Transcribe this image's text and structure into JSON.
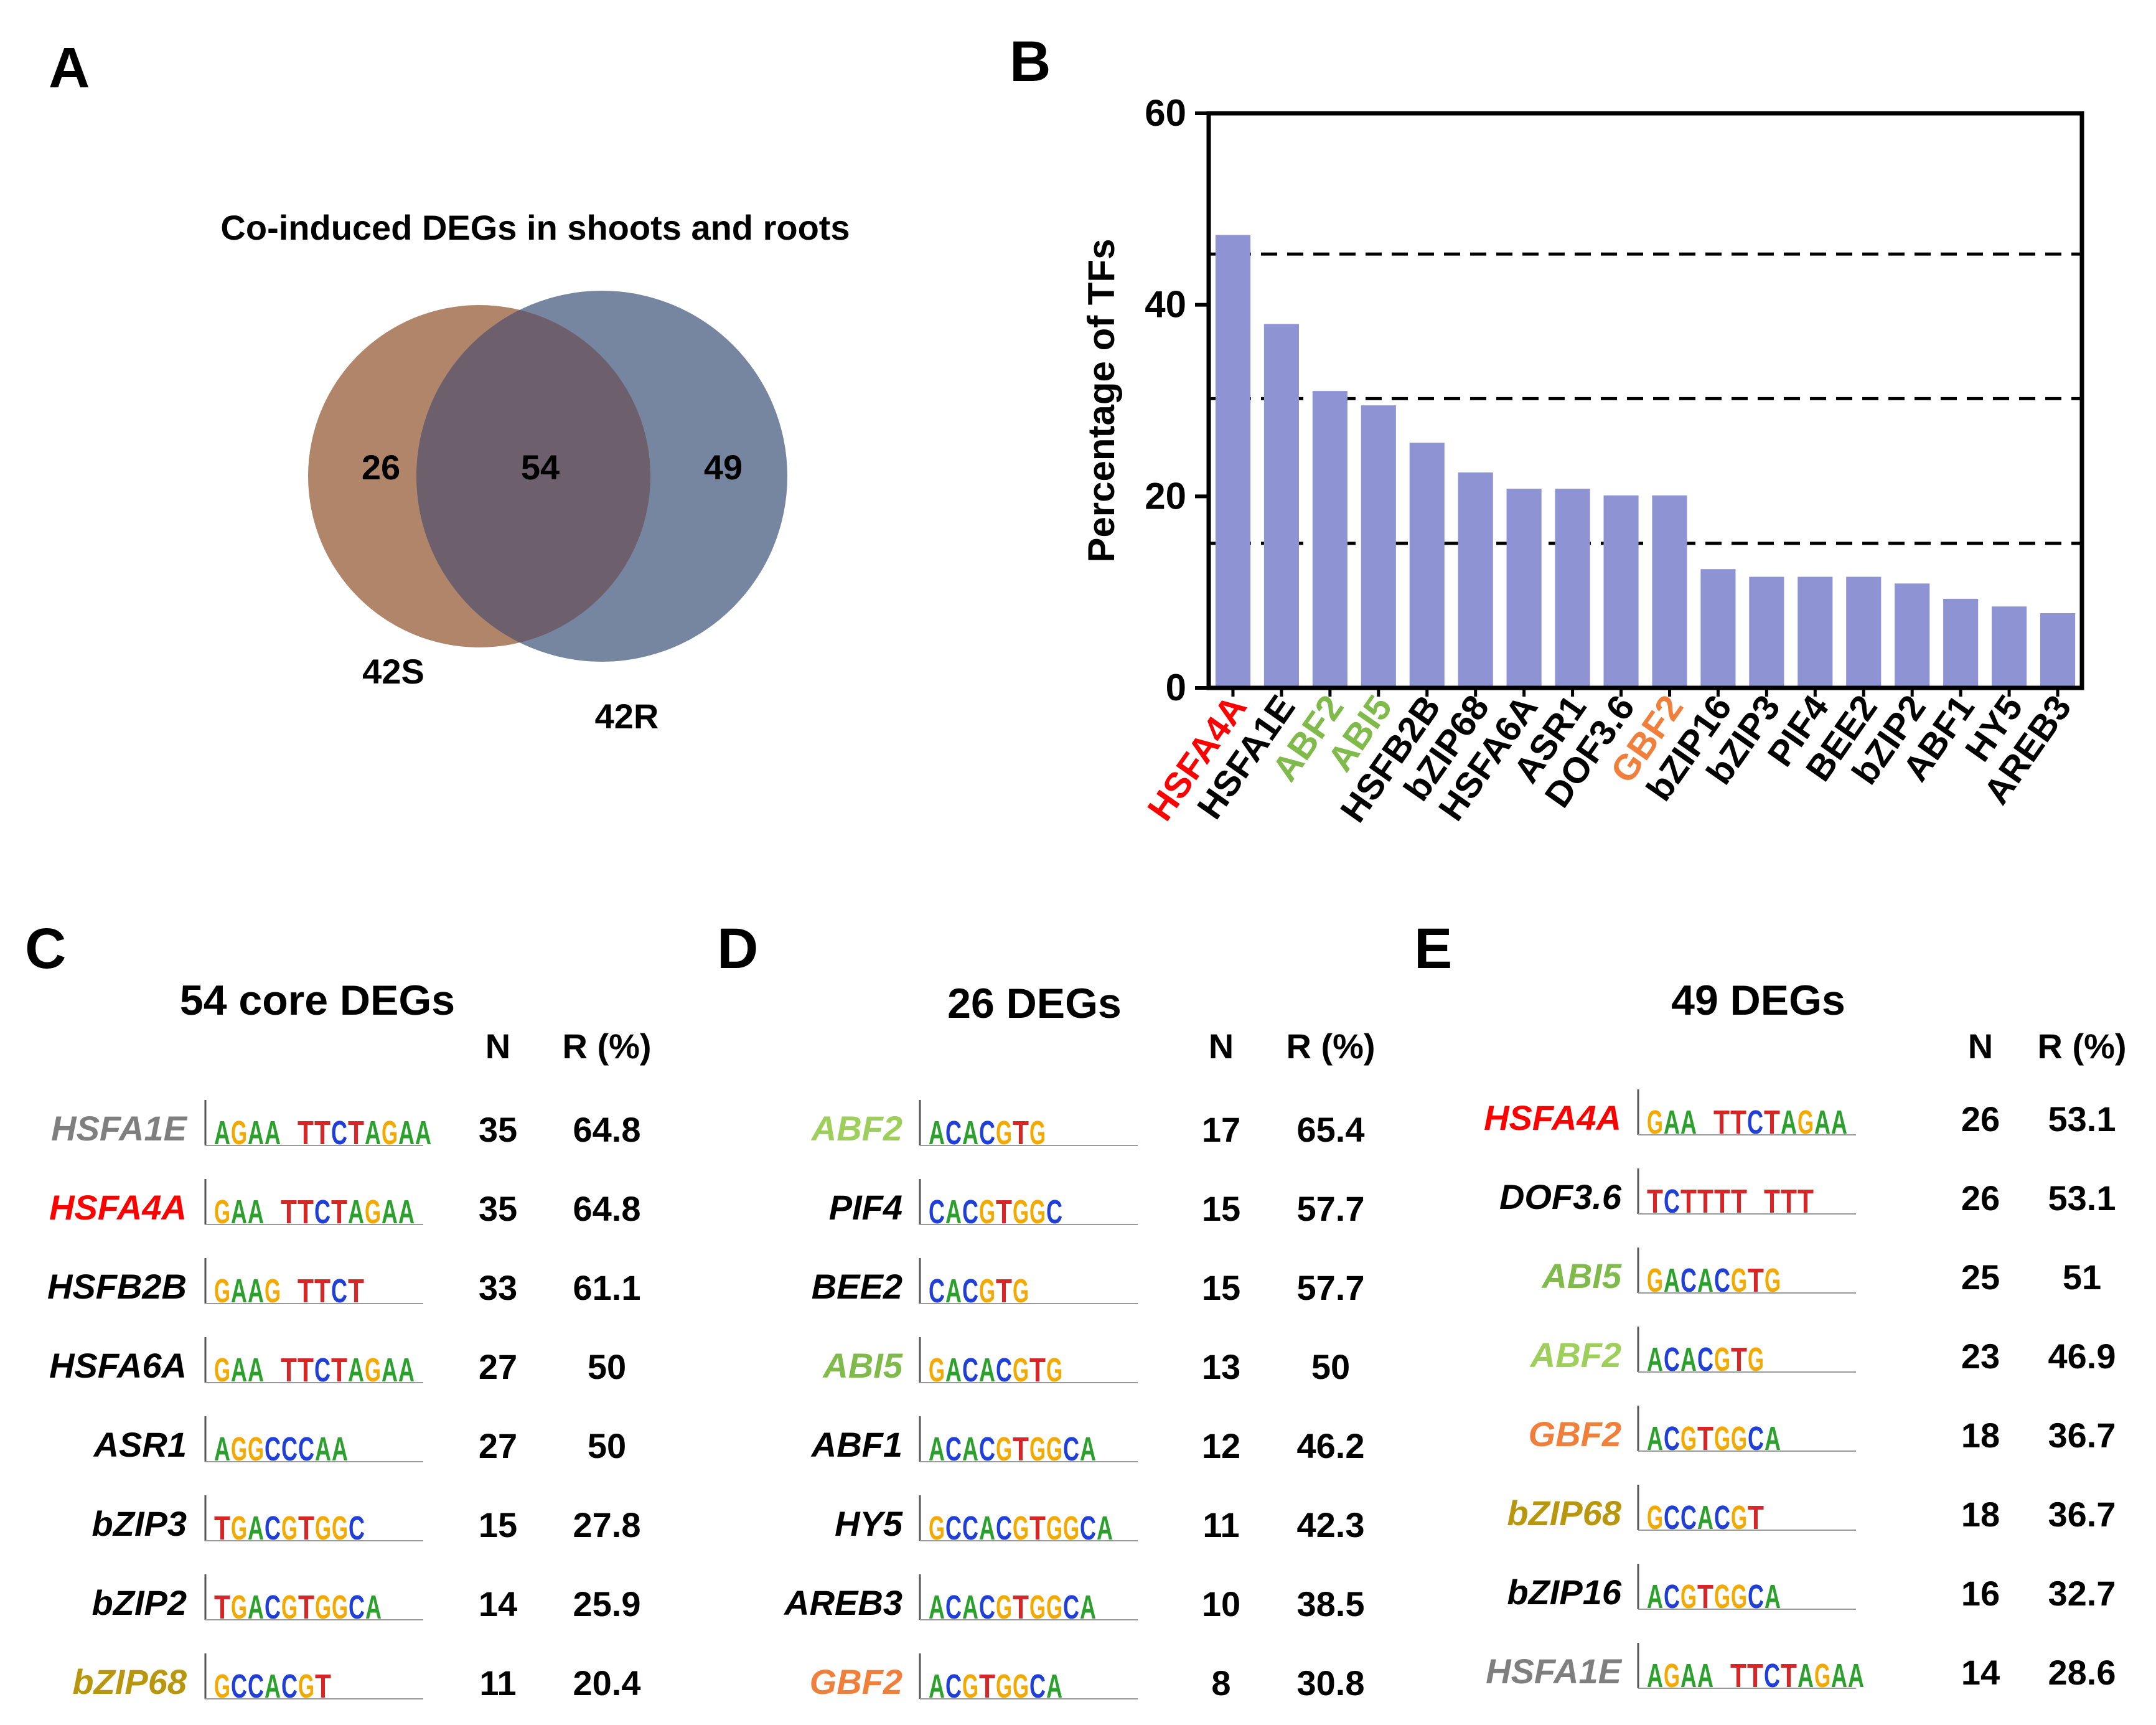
{
  "panels": {
    "a": "A",
    "b": "B",
    "c": "C",
    "d": "D",
    "e": "E"
  },
  "venn": {
    "title": "Co-induced DEGs in shoots and roots",
    "left_label": "42S",
    "right_label": "42R",
    "left_only": "26",
    "overlap": "54",
    "right_only": "49",
    "left_color": "#b08569",
    "right_color": "#6f809b",
    "overlap_color": "#6d5f6c"
  },
  "chart_data": {
    "type": "bar",
    "title": "",
    "xlabel": "",
    "ylabel": "Percentage of TFs",
    "ylim": [
      0,
      60
    ],
    "yticks": [
      "0",
      "20",
      "40",
      "60"
    ],
    "ytick_values": [
      0,
      20,
      40,
      60
    ],
    "reference_lines": [
      45.3,
      30.2,
      15.1
    ],
    "bar_color": "#8e94d3",
    "categories": [
      "HSFA4A",
      "HSFA1E",
      "ABF2",
      "ABI5",
      "HSFB2B",
      "bZIP68",
      "HSFA6A",
      "ASR1",
      "DOF3.6",
      "GBF2",
      "bZIP16",
      "bZIP3",
      "PIF4",
      "BEE2",
      "bZIP2",
      "ABF1",
      "HY5",
      "AREB3"
    ],
    "values": [
      47.3,
      38.0,
      31.0,
      29.5,
      25.6,
      22.5,
      20.8,
      20.8,
      20.1,
      20.1,
      12.4,
      11.6,
      11.6,
      11.6,
      10.9,
      9.3,
      8.5,
      7.8
    ],
    "label_colors": [
      "#ff0000",
      "#000000",
      "#7fba4a",
      "#7fba4a",
      "#000000",
      "#000000",
      "#000000",
      "#000000",
      "#000000",
      "#f07f3c",
      "#000000",
      "#000000",
      "#000000",
      "#000000",
      "#000000",
      "#000000",
      "#000000",
      "#000000"
    ]
  },
  "tables": [
    {
      "title": "54 core DEGs",
      "col_n": "N",
      "col_r": "R (%)",
      "rows": [
        {
          "name": "HSFA1E",
          "color": "#7f7f7f",
          "motif": "AGAA-TTCTAGAA",
          "n": "35",
          "r": "64.8"
        },
        {
          "name": "HSFA4A",
          "color": "#ff0000",
          "motif": "GAA-TTCTAGAA",
          "n": "35",
          "r": "64.8"
        },
        {
          "name": "HSFB2B",
          "color": "#000000",
          "motif": "GAAG-TTCT",
          "n": "33",
          "r": "61.1"
        },
        {
          "name": "HSFA6A",
          "color": "#000000",
          "motif": "GAA-TTCTAGAA",
          "n": "27",
          "r": "50"
        },
        {
          "name": "ASR1",
          "color": "#000000",
          "motif": "AGGCCCAA",
          "n": "27",
          "r": "50"
        },
        {
          "name": "bZIP3",
          "color": "#000000",
          "motif": "TGACGTGGC",
          "n": "15",
          "r": "27.8"
        },
        {
          "name": "bZIP2",
          "color": "#000000",
          "motif": "TGACGTGGCA",
          "n": "14",
          "r": "25.9"
        },
        {
          "name": "bZIP68",
          "color": "#b8970f",
          "motif": "GCCACGT",
          "n": "11",
          "r": "20.4"
        }
      ]
    },
    {
      "title": "26 DEGs",
      "col_n": "N",
      "col_r": "R (%)",
      "rows": [
        {
          "name": "ABF2",
          "color": "#9dcf5a",
          "motif": "ACACGTG",
          "n": "17",
          "r": "65.4"
        },
        {
          "name": "PIF4",
          "color": "#000000",
          "motif": "CACGTGGC",
          "n": "15",
          "r": "57.7"
        },
        {
          "name": "BEE2",
          "color": "#000000",
          "motif": "CACGTG",
          "n": "15",
          "r": "57.7"
        },
        {
          "name": "ABI5",
          "color": "#7fba4a",
          "motif": "GACACGTG",
          "n": "13",
          "r": "50"
        },
        {
          "name": "ABF1",
          "color": "#000000",
          "motif": "ACACGTGGCA",
          "n": "12",
          "r": "46.2"
        },
        {
          "name": "HY5",
          "color": "#000000",
          "motif": "GCCACGTGGCA",
          "n": "11",
          "r": "42.3"
        },
        {
          "name": "AREB3",
          "color": "#000000",
          "motif": "ACACGTGGCA",
          "n": "10",
          "r": "38.5"
        },
        {
          "name": "GBF2",
          "color": "#f07f3c",
          "motif": "ACGTGGCA",
          "n": "8",
          "r": "30.8"
        }
      ]
    },
    {
      "title": "49 DEGs",
      "col_n": "N",
      "col_r": "R (%)",
      "rows": [
        {
          "name": "HSFA4A",
          "color": "#ff0000",
          "motif": "GAA-TTCTAGAA",
          "n": "26",
          "r": "53.1"
        },
        {
          "name": "DOF3.6",
          "color": "#000000",
          "motif": "TCTTTT-TTT",
          "n": "26",
          "r": "53.1"
        },
        {
          "name": "ABI5",
          "color": "#7fba4a",
          "motif": "GACACGTG",
          "n": "25",
          "r": "51"
        },
        {
          "name": "ABF2",
          "color": "#9dcf5a",
          "motif": "ACACGTG",
          "n": "23",
          "r": "46.9"
        },
        {
          "name": "GBF2",
          "color": "#f07f3c",
          "motif": "ACGTGGCA",
          "n": "18",
          "r": "36.7"
        },
        {
          "name": "bZIP68",
          "color": "#b8970f",
          "motif": "GCCACGT",
          "n": "18",
          "r": "36.7"
        },
        {
          "name": "bZIP16",
          "color": "#000000",
          "motif": "ACGTGGCA",
          "n": "16",
          "r": "32.7"
        },
        {
          "name": "HSFA1E",
          "color": "#7f7f7f",
          "motif": "AGAA-TTCTAGAA",
          "n": "14",
          "r": "28.6"
        }
      ]
    }
  ]
}
